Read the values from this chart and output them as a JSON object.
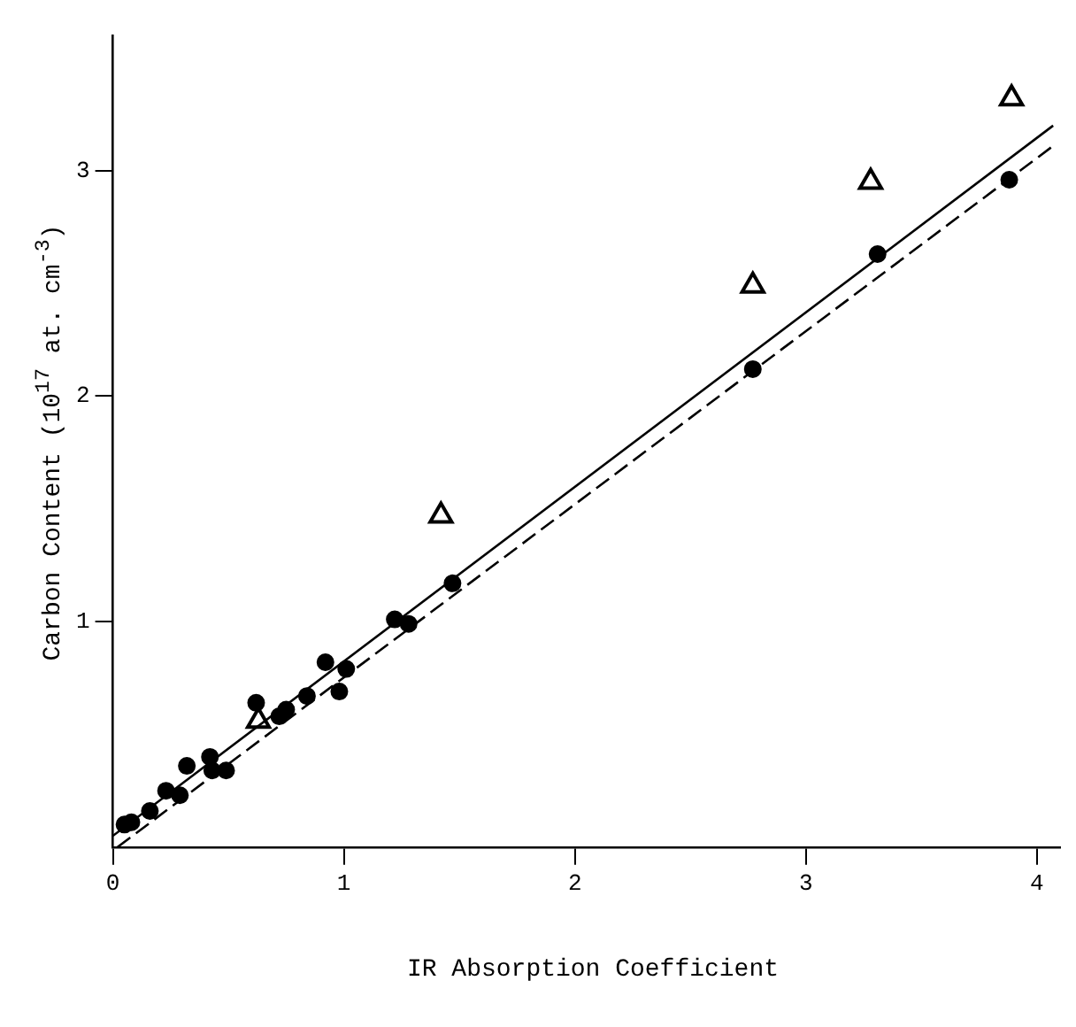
{
  "chart_data": {
    "type": "scatter",
    "xlabel": "IR Absorption Coefficient",
    "ylabel": "Carbon Content (10$^{17}$ at. cm$^{-3}$)",
    "xlim": [
      0,
      4.1
    ],
    "ylim": [
      0,
      3.6
    ],
    "xticks": [
      0,
      1,
      2,
      3,
      4
    ],
    "yticks": [
      1,
      2,
      3
    ],
    "grid": false,
    "legend": false,
    "series": [
      {
        "type": "scatter",
        "marker": "circle",
        "color": "#000000",
        "x": [
          0.05,
          0.08,
          0.16,
          0.23,
          0.29,
          0.32,
          0.42,
          0.43,
          0.49,
          0.62,
          0.72,
          0.75,
          0.84,
          0.92,
          1.01,
          0.98,
          1.22,
          1.28,
          1.47,
          2.77,
          3.31,
          3.88
        ],
        "values": [
          0.1,
          0.11,
          0.16,
          0.25,
          0.23,
          0.36,
          0.4,
          0.34,
          0.34,
          0.64,
          0.58,
          0.61,
          0.67,
          0.82,
          0.79,
          0.69,
          1.01,
          0.99,
          1.17,
          2.12,
          2.63,
          2.96
        ]
      },
      {
        "type": "scatter",
        "marker": "triangle",
        "color": "#000000",
        "x": [
          0.63,
          1.42,
          2.77,
          3.28,
          3.89
        ],
        "values": [
          0.56,
          1.47,
          2.49,
          2.95,
          3.32
        ]
      },
      {
        "type": "line",
        "marker": "none",
        "line_style": "solid",
        "color": "#000000",
        "x": [
          0,
          4.07
        ],
        "values": [
          0.05,
          3.2
        ]
      },
      {
        "type": "line",
        "marker": "none",
        "line_style": "dashed",
        "color": "#000000",
        "x": [
          0.02,
          4.07
        ],
        "values": [
          0,
          3.11
        ]
      }
    ]
  }
}
